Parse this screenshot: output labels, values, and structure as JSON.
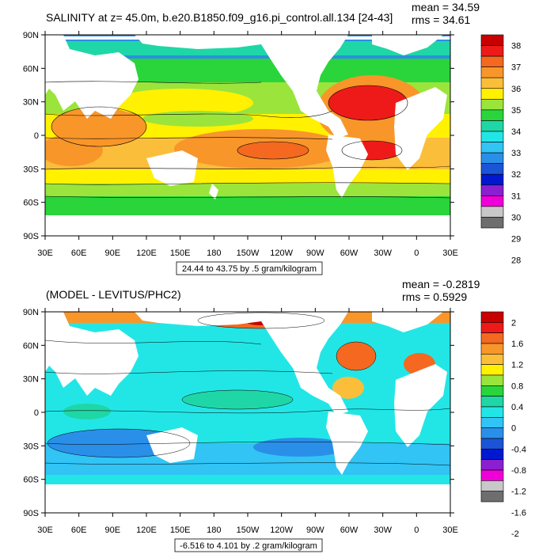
{
  "chart_data": [
    {
      "type": "heatmap",
      "title": "SALINITY at z=  45.0m, b.e20.B1850.f09_g16.pi_control.all.134 [24-43]",
      "stats": {
        "mean": "mean = 34.59",
        "rms": "rms = 34.61"
      },
      "contour_info": "24.44 to 43.75 by .5 gram/kilogram",
      "x_ticks": [
        "30E",
        "60E",
        "90E",
        "120E",
        "150E",
        "180",
        "150W",
        "120W",
        "90W",
        "60W",
        "30W",
        "0",
        "30E"
      ],
      "y_ticks": [
        "90N",
        "60N",
        "30N",
        "0",
        "30S",
        "60S",
        "90S"
      ],
      "colorbar": {
        "labels": [
          "38",
          "37",
          "36",
          "35",
          "34",
          "33",
          "32",
          "31",
          "30",
          "29",
          "28"
        ],
        "colors": [
          "#c80000",
          "#ee1a1a",
          "#f46820",
          "#f8962a",
          "#fbbe3a",
          "#fff100",
          "#9be43c",
          "#29d53a",
          "#1fd7a6",
          "#22e6e6",
          "#31c4f5",
          "#2a8fe8",
          "#1b54d6",
          "#0018d0",
          "#8a20d0",
          "#f000d8",
          "#c8c8c8",
          "#6e6e6e"
        ]
      },
      "grid": false
    },
    {
      "type": "heatmap",
      "title": "(MODEL - LEVITUS/PHC2)",
      "stats": {
        "mean": "mean = -0.2819",
        "rms": "rms = 0.5929"
      },
      "contour_info": "-6.516 to 4.101 by .2 gram/kilogram",
      "x_ticks": [
        "30E",
        "60E",
        "90E",
        "120E",
        "150E",
        "180",
        "150W",
        "120W",
        "90W",
        "60W",
        "30W",
        "0",
        "30E"
      ],
      "y_ticks": [
        "90N",
        "60N",
        "30N",
        "0",
        "30S",
        "60S",
        "90S"
      ],
      "colorbar": {
        "labels": [
          "2",
          "1.6",
          "1.2",
          "0.8",
          "0.4",
          "0",
          "-0.4",
          "-0.8",
          "-1.2",
          "-1.6",
          "-2"
        ],
        "colors": [
          "#c80000",
          "#ee1a1a",
          "#f46820",
          "#f8962a",
          "#fbbe3a",
          "#fff100",
          "#9be43c",
          "#29d53a",
          "#1fd7a6",
          "#22e6e6",
          "#31c4f5",
          "#2a8fe8",
          "#1b54d6",
          "#0018d0",
          "#8a20d0",
          "#f000d8",
          "#c8c8c8",
          "#6e6e6e"
        ]
      },
      "grid": false
    }
  ]
}
